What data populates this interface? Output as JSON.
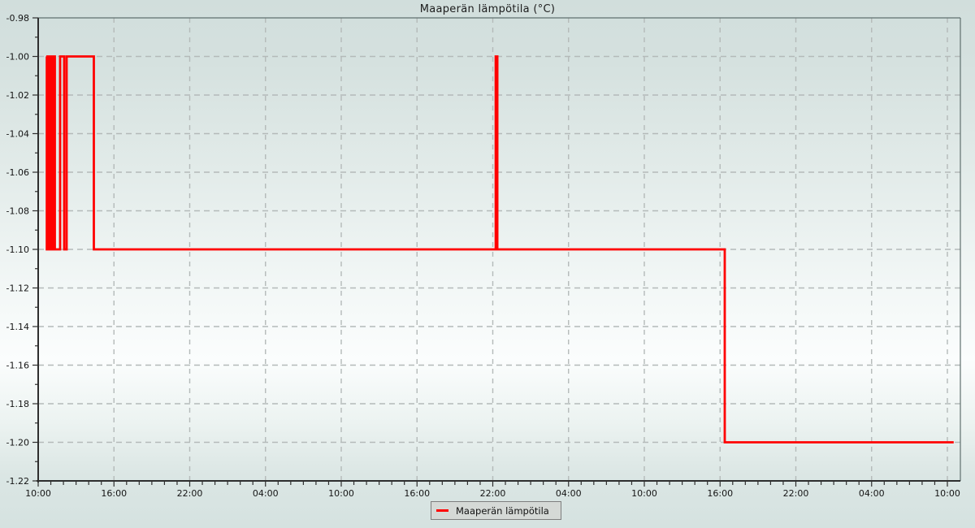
{
  "chart_data": {
    "type": "line",
    "title": "Maaperän lämpötila (°C)",
    "xlabel": "",
    "ylabel": "",
    "grid": true,
    "legend_position": "bottom-center",
    "series": [
      {
        "name": "Maaperän lämpötila",
        "color": "#ff0000",
        "style": "step",
        "unit": "°C",
        "steps_hours_value": [
          [
            0.64,
            -1.0
          ],
          [
            0.68,
            -1.1
          ],
          [
            0.76,
            -1.0
          ],
          [
            0.78,
            -1.1
          ],
          [
            0.86,
            -1.0
          ],
          [
            0.88,
            -1.1
          ],
          [
            0.96,
            -1.0
          ],
          [
            0.98,
            -1.1
          ],
          [
            1.06,
            -1.0
          ],
          [
            1.08,
            -1.1
          ],
          [
            1.16,
            -1.0
          ],
          [
            1.18,
            -1.1
          ],
          [
            1.3,
            -1.0
          ],
          [
            1.32,
            -1.1
          ],
          [
            1.74,
            -1.0
          ],
          [
            2.06,
            -1.1
          ],
          [
            2.25,
            -1.0
          ],
          [
            4.41,
            -1.1
          ],
          [
            36.23,
            -1.0
          ],
          [
            36.36,
            -1.1
          ],
          [
            54.37,
            -1.2
          ]
        ],
        "end_hour": 72.5
      }
    ],
    "x_axis": {
      "start_label": "10:00",
      "major_tick_hours": [
        0,
        6,
        12,
        18,
        24,
        30,
        36,
        42,
        48,
        54,
        60,
        66,
        72
      ],
      "tick_labels": [
        "10:00",
        "16:00",
        "22:00",
        "04:00",
        "10:00",
        "16:00",
        "22:00",
        "04:00",
        "10:00",
        "16:00",
        "22:00",
        "04:00",
        "10:00"
      ],
      "minor_step_hours": 1,
      "range_hours": [
        0,
        73.0
      ]
    },
    "y_axis": {
      "tick_labels": [
        "-0.98",
        "-1.00",
        "-1.02",
        "-1.04",
        "-1.06",
        "-1.08",
        "-1.10",
        "-1.12",
        "-1.14",
        "-1.16",
        "-1.18",
        "-1.20",
        "-1.22"
      ],
      "minor_step": 0.01,
      "ylim": [
        -1.22,
        -0.98
      ]
    },
    "colors": {
      "line": "#ff0000",
      "grid": "#b4bab9",
      "axis": "#2e2e2e",
      "frame": "#60706f",
      "text": "#151515",
      "background_top": "#d1dedc",
      "background_middle": "#fbfdfd",
      "background_bottom": "#d5e2e0",
      "legend_background": "#d5d9d6",
      "legend_border": "#7e7e7e"
    }
  }
}
